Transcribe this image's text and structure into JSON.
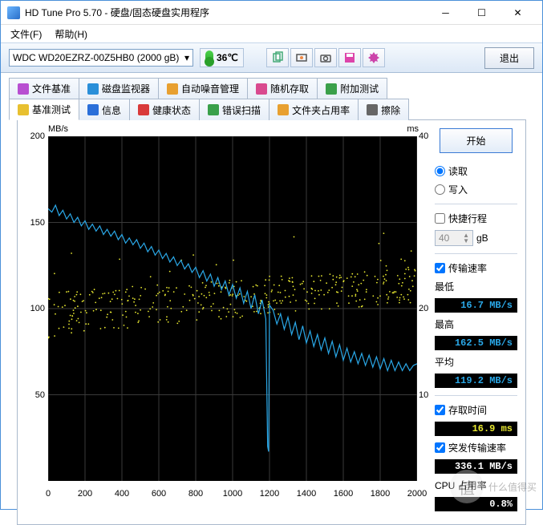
{
  "window": {
    "title": "HD Tune Pro 5.70 - 硬盘/固态硬盘实用程序"
  },
  "menu": {
    "file": "文件(F)",
    "help": "帮助(H)"
  },
  "toolbar": {
    "drive": "WDC WD20EZRZ-00Z5HB0 (2000 gB)",
    "temp": "36℃",
    "exit": "退出"
  },
  "tabs_top": [
    {
      "label": "文件基准",
      "icon": "#b84fd1"
    },
    {
      "label": "磁盘监视器",
      "icon": "#2a8fd9"
    },
    {
      "label": "自动噪音管理",
      "icon": "#e8a030"
    },
    {
      "label": "随机存取",
      "icon": "#d94a8f"
    },
    {
      "label": "附加测试",
      "icon": "#3aa04a"
    }
  ],
  "tabs_bot": [
    {
      "label": "基准测试",
      "icon": "#e8c030",
      "active": true
    },
    {
      "label": "信息",
      "icon": "#2a6fd9"
    },
    {
      "label": "健康状态",
      "icon": "#d93a3a"
    },
    {
      "label": "错误扫描",
      "icon": "#3aa04a"
    },
    {
      "label": "文件夹占用率",
      "icon": "#e8a030"
    },
    {
      "label": "擦除",
      "icon": "#666"
    }
  ],
  "chart": {
    "ylabel_left": "MB/s",
    "ylabel_right": "ms",
    "yticks_left": [
      {
        "v": 200,
        "p": 0
      },
      {
        "v": 150,
        "p": 0.25
      },
      {
        "v": 100,
        "p": 0.5
      },
      {
        "v": 50,
        "p": 0.75
      }
    ],
    "yticks_right": [
      {
        "v": 40,
        "p": 0
      },
      {
        "v": 20,
        "p": 0.5
      },
      {
        "v": 10,
        "p": 0.75
      }
    ],
    "xticks": [
      0,
      200,
      400,
      600,
      800,
      1000,
      1200,
      1400,
      1600,
      1800,
      2000
    ],
    "xlim": [
      0,
      2000
    ],
    "ylim_left": [
      0,
      200
    ],
    "line_color": "#2aa8e8",
    "dot_color": "#e8e830",
    "bg": "#000",
    "grid": "#383838",
    "transfer": [
      [
        0,
        158
      ],
      [
        20,
        156
      ],
      [
        40,
        160
      ],
      [
        60,
        154
      ],
      [
        80,
        157
      ],
      [
        100,
        152
      ],
      [
        120,
        155
      ],
      [
        140,
        150
      ],
      [
        160,
        153
      ],
      [
        180,
        148
      ],
      [
        200,
        151
      ],
      [
        220,
        146
      ],
      [
        240,
        149
      ],
      [
        260,
        145
      ],
      [
        280,
        148
      ],
      [
        300,
        143
      ],
      [
        320,
        146
      ],
      [
        340,
        142
      ],
      [
        360,
        145
      ],
      [
        380,
        140
      ],
      [
        400,
        143
      ],
      [
        420,
        138
      ],
      [
        440,
        141
      ],
      [
        460,
        137
      ],
      [
        480,
        140
      ],
      [
        500,
        135
      ],
      [
        520,
        138
      ],
      [
        540,
        133
      ],
      [
        560,
        136
      ],
      [
        580,
        131
      ],
      [
        600,
        134
      ],
      [
        620,
        129
      ],
      [
        640,
        132
      ],
      [
        660,
        127
      ],
      [
        680,
        130
      ],
      [
        700,
        125
      ],
      [
        720,
        128
      ],
      [
        740,
        123
      ],
      [
        760,
        126
      ],
      [
        780,
        121
      ],
      [
        800,
        124
      ],
      [
        820,
        118
      ],
      [
        840,
        122
      ],
      [
        860,
        116
      ],
      [
        880,
        120
      ],
      [
        900,
        113
      ],
      [
        920,
        118
      ],
      [
        940,
        111
      ],
      [
        960,
        116
      ],
      [
        980,
        108
      ],
      [
        1000,
        114
      ],
      [
        1020,
        106
      ],
      [
        1040,
        112
      ],
      [
        1060,
        103
      ],
      [
        1080,
        110
      ],
      [
        1100,
        100
      ],
      [
        1120,
        108
      ],
      [
        1140,
        97
      ],
      [
        1160,
        105
      ],
      [
        1180,
        94
      ],
      [
        1190,
        20
      ],
      [
        1195,
        17
      ],
      [
        1200,
        102
      ],
      [
        1220,
        99
      ],
      [
        1240,
        91
      ],
      [
        1260,
        97
      ],
      [
        1280,
        88
      ],
      [
        1300,
        95
      ],
      [
        1320,
        85
      ],
      [
        1340,
        92
      ],
      [
        1360,
        82
      ],
      [
        1380,
        90
      ],
      [
        1400,
        80
      ],
      [
        1420,
        87
      ],
      [
        1440,
        78
      ],
      [
        1460,
        85
      ],
      [
        1480,
        76
      ],
      [
        1500,
        83
      ],
      [
        1520,
        74
      ],
      [
        1540,
        81
      ],
      [
        1560,
        72
      ],
      [
        1580,
        79
      ],
      [
        1600,
        70
      ],
      [
        1620,
        77
      ],
      [
        1640,
        69
      ],
      [
        1660,
        75
      ],
      [
        1680,
        68
      ],
      [
        1700,
        74
      ],
      [
        1720,
        67
      ],
      [
        1740,
        73
      ],
      [
        1760,
        66
      ],
      [
        1780,
        72
      ],
      [
        1800,
        65
      ],
      [
        1820,
        71
      ],
      [
        1840,
        64
      ],
      [
        1860,
        70
      ],
      [
        1880,
        64
      ],
      [
        1900,
        69
      ],
      [
        1920,
        64
      ],
      [
        1940,
        68
      ],
      [
        1960,
        64
      ],
      [
        1980,
        67
      ],
      [
        2000,
        68
      ]
    ],
    "access_dots_count": 400
  },
  "sidebar": {
    "start": "开始",
    "read": "读取",
    "write": "写入",
    "quick": "快捷行程",
    "quick_val": "40",
    "quick_unit": "gB",
    "transfer_chk": "传输速率",
    "min_label": "最低",
    "min_val": "16.7 MB/s",
    "min_color": "#2aa8e8",
    "max_label": "最高",
    "max_val": "162.5 MB/s",
    "max_color": "#2aa8e8",
    "avg_label": "平均",
    "avg_val": "119.2 MB/s",
    "avg_color": "#2aa8e8",
    "access_chk": "存取时间",
    "access_val": "16.9 ms",
    "access_color": "#e8e830",
    "burst_chk": "突发传输速率",
    "burst_val": "336.1 MB/s",
    "burst_color": "#ffffff",
    "cpu_label": "CPU 占用率",
    "cpu_val": "0.8%",
    "cpu_color": "#ffffff"
  },
  "watermark": "什么值得买"
}
